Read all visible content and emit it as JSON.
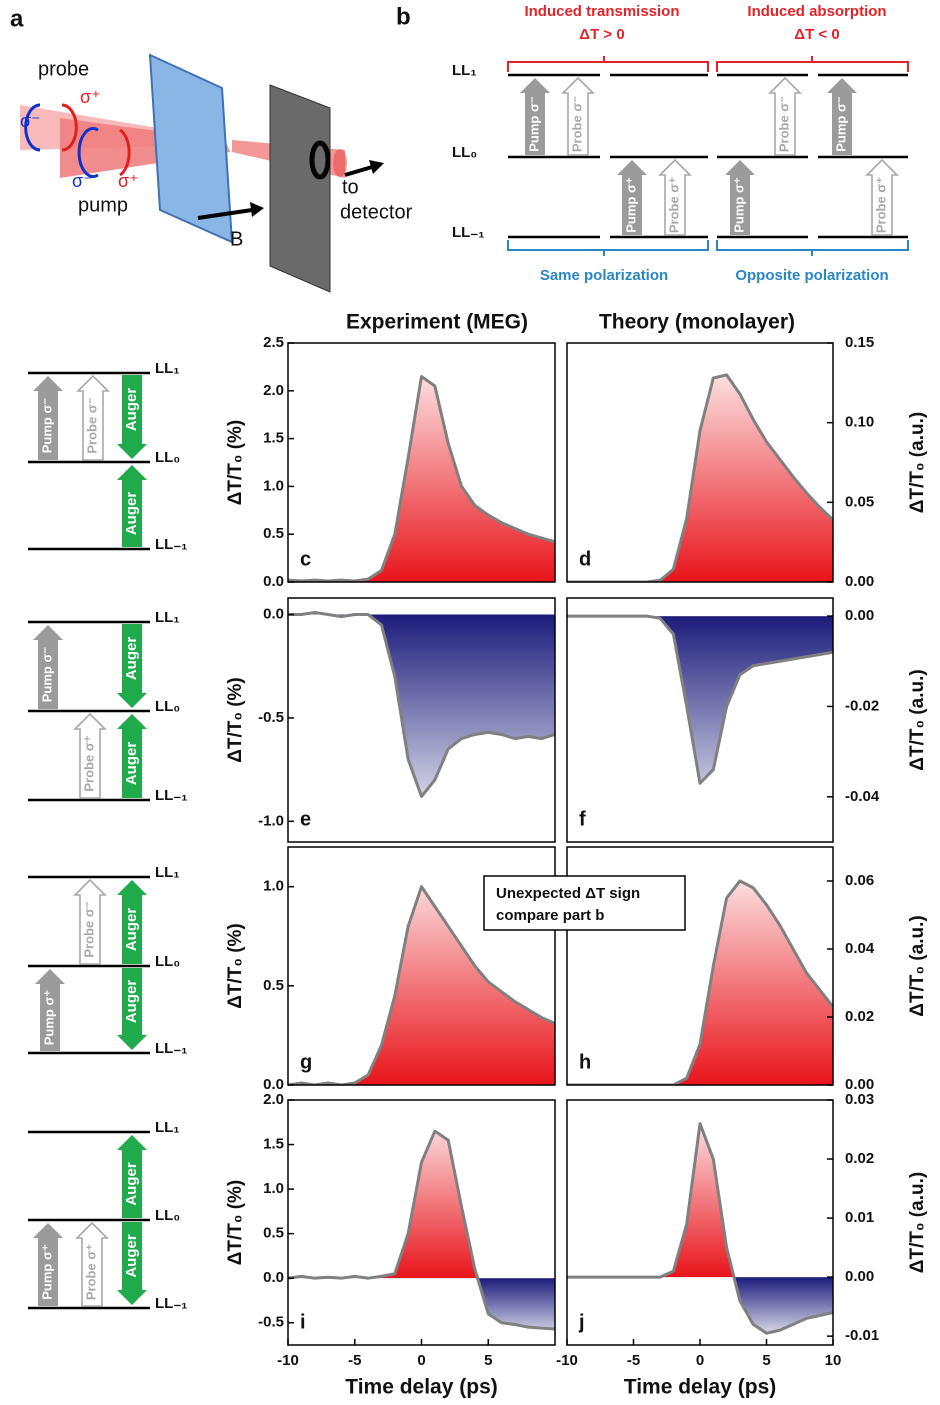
{
  "panel_a": {
    "label": "a",
    "probe": "probe",
    "pump": "pump",
    "sigma_minus": "σ⁻",
    "sigma_plus": "σ⁺",
    "field": "B",
    "to": "to",
    "detector": "detector"
  },
  "panel_b": {
    "label": "b",
    "headers": [
      "Induced transmission",
      "Induced absorption"
    ],
    "conditions": [
      "ΔT > 0",
      "ΔT < 0"
    ],
    "footers": [
      "Same polarization",
      "Opposite polarization"
    ]
  },
  "levels": [
    "LL₁",
    "LL₀",
    "LL₋₁"
  ],
  "arrow_labels": {
    "pump_minus": "Pump σ⁻",
    "pump_plus": "Pump σ⁺",
    "probe_minus": "Probe σ⁻",
    "probe_plus": "Probe σ⁺",
    "auger": "Auger"
  },
  "column_titles": [
    "Experiment (MEG)",
    "Theory (monolayer)"
  ],
  "annotation": [
    "Unexpected ΔT sign",
    "compare part b"
  ],
  "chart_data": [
    {
      "type": "area",
      "panel": "c",
      "x": [
        -10,
        -9,
        -8,
        -7,
        -6,
        -5,
        -4,
        -3,
        -2,
        -1,
        0,
        1,
        2,
        3,
        4,
        5,
        6,
        7,
        8,
        9,
        10
      ],
      "values": [
        0.02,
        0.01,
        0.02,
        0.01,
        0.02,
        0.01,
        0.03,
        0.12,
        0.5,
        1.3,
        2.15,
        2.05,
        1.45,
        1.0,
        0.8,
        0.7,
        0.62,
        0.56,
        0.5,
        0.46,
        0.42
      ],
      "color": "#808080",
      "positive_color": "#e8141b",
      "negative_color": "#1c1c7c",
      "xlim": [
        -10,
        10
      ],
      "ylim": [
        0,
        2.5
      ],
      "yticks": [
        {
          "value": 0,
          "label": "0.0"
        },
        0.5,
        {
          "value": 1,
          "label": "1.0"
        },
        1.5,
        {
          "value": 2,
          "label": "2.0"
        },
        2.5
      ],
      "ylabel": "ΔT/T₀ (%)"
    },
    {
      "type": "area",
      "panel": "d",
      "x": [
        -10,
        -9,
        -8,
        -7,
        -6,
        -5,
        -4,
        -3,
        -2,
        -1,
        0,
        1,
        2,
        3,
        4,
        5,
        6,
        7,
        8,
        9,
        10
      ],
      "values": [
        0,
        0,
        0,
        0,
        0,
        0,
        0,
        0.001,
        0.008,
        0.04,
        0.095,
        0.128,
        0.13,
        0.118,
        0.102,
        0.088,
        0.077,
        0.066,
        0.056,
        0.047,
        0.039
      ],
      "color": "#808080",
      "positive_color": "#e8141b",
      "negative_color": "#1c1c7c",
      "xlim": [
        -10,
        10
      ],
      "ylim": [
        0,
        0.15
      ],
      "yticks": [
        {
          "value": 0,
          "label": "0.00"
        },
        0.05,
        {
          "value": 0.1,
          "label": "0.10"
        },
        0.15
      ],
      "ylabel": "ΔT/T₀ (a.u.)"
    },
    {
      "type": "area",
      "panel": "e",
      "x": [
        -10,
        -9,
        -8,
        -7,
        -6,
        -5,
        -4,
        -3,
        -2,
        -1,
        0,
        1,
        2,
        3,
        4,
        5,
        6,
        7,
        8,
        9,
        10
      ],
      "values": [
        0,
        0,
        0.01,
        0,
        -0.01,
        0,
        0,
        -0.05,
        -0.3,
        -0.7,
        -0.88,
        -0.8,
        -0.65,
        -0.6,
        -0.58,
        -0.57,
        -0.58,
        -0.6,
        -0.59,
        -0.6,
        -0.58
      ],
      "color": "#808080",
      "positive_color": "#e8141b",
      "negative_color": "#1c1c7c",
      "xlim": [
        -10,
        10
      ],
      "ylim": [
        -1.1,
        0.08
      ],
      "yticks": [
        {
          "value": 0,
          "label": "0.0"
        },
        -0.5,
        {
          "value": -1,
          "label": "-1.0"
        }
      ],
      "ylabel": "ΔT/T₀ (%)"
    },
    {
      "type": "area",
      "panel": "f",
      "x": [
        -10,
        -9,
        -8,
        -7,
        -6,
        -5,
        -4,
        -3,
        -2,
        -1,
        0,
        1,
        2,
        3,
        4,
        5,
        6,
        7,
        8,
        9,
        10
      ],
      "values": [
        0,
        0,
        0,
        0,
        0,
        0,
        0,
        -0.0005,
        -0.004,
        -0.02,
        -0.037,
        -0.034,
        -0.02,
        -0.013,
        -0.011,
        -0.0105,
        -0.01,
        -0.0095,
        -0.009,
        -0.0085,
        -0.008
      ],
      "color": "#808080",
      "positive_color": "#e8141b",
      "negative_color": "#1c1c7c",
      "xlim": [
        -10,
        10
      ],
      "ylim": [
        -0.05,
        0.004
      ],
      "yticks": [
        {
          "value": 0,
          "label": "0.00"
        },
        -0.02,
        -0.04
      ],
      "ylabel": "ΔT/T₀ (a.u.)"
    },
    {
      "type": "area",
      "panel": "g",
      "x": [
        -10,
        -9,
        -8,
        -7,
        -6,
        -5,
        -4,
        -3,
        -2,
        -1,
        0,
        1,
        2,
        3,
        4,
        5,
        6,
        7,
        8,
        9,
        10
      ],
      "values": [
        0,
        0.01,
        0,
        0.01,
        0,
        0.01,
        0.05,
        0.2,
        0.45,
        0.8,
        1.0,
        0.9,
        0.8,
        0.7,
        0.6,
        0.52,
        0.47,
        0.42,
        0.38,
        0.34,
        0.31
      ],
      "color": "#808080",
      "positive_color": "#e8141b",
      "negative_color": "#1c1c7c",
      "xlim": [
        -10,
        10
      ],
      "ylim": [
        0,
        1.2
      ],
      "yticks": [
        {
          "value": 0,
          "label": "0.0"
        },
        0.5,
        {
          "value": 1,
          "label": "1.0"
        }
      ],
      "ylabel": "ΔT/T₀ (%)"
    },
    {
      "type": "area",
      "panel": "h",
      "x": [
        -10,
        -9,
        -8,
        -7,
        -6,
        -5,
        -4,
        -3,
        -2,
        -1,
        0,
        1,
        2,
        3,
        4,
        5,
        6,
        7,
        8,
        9,
        10
      ],
      "values": [
        0,
        0,
        0,
        0,
        0,
        0,
        0,
        0,
        0,
        0.002,
        0.012,
        0.035,
        0.055,
        0.06,
        0.058,
        0.053,
        0.047,
        0.04,
        0.033,
        0.028,
        0.023
      ],
      "color": "#808080",
      "positive_color": "#e8141b",
      "negative_color": "#1c1c7c",
      "xlim": [
        -10,
        10
      ],
      "ylim": [
        0,
        0.07
      ],
      "yticks": [
        {
          "value": 0,
          "label": "0.00"
        },
        0.02,
        0.04,
        0.06
      ],
      "ylabel": "ΔT/T₀ (a.u.)"
    },
    {
      "type": "area",
      "panel": "i",
      "x": [
        -10,
        -9,
        -8,
        -7,
        -6,
        -5,
        -4,
        -3,
        -2,
        -1,
        0,
        1,
        2,
        3,
        4,
        5,
        6,
        7,
        8,
        9,
        10
      ],
      "values": [
        0,
        0.02,
        0,
        0.01,
        0,
        0.02,
        0,
        0.02,
        0.05,
        0.5,
        1.3,
        1.65,
        1.55,
        0.8,
        0.1,
        -0.4,
        -0.5,
        -0.52,
        -0.55,
        -0.56,
        -0.57
      ],
      "color": "#808080",
      "positive_color": "#e8141b",
      "negative_color": "#1c1c7c",
      "xlim": [
        -10,
        10
      ],
      "ylim": [
        -0.75,
        2
      ],
      "yticks": [
        -0.5,
        {
          "value": 0,
          "label": "0.0"
        },
        0.5,
        {
          "value": 1,
          "label": "1.0"
        },
        1.5,
        {
          "value": 2,
          "label": "2.0"
        }
      ],
      "xticks": [
        -10,
        -5,
        0,
        5
      ],
      "ylabel": "ΔT/T₀ (%)",
      "xlabel": "Time delay (ps)"
    },
    {
      "type": "area",
      "panel": "j",
      "x": [
        -10,
        -9,
        -8,
        -7,
        -6,
        -5,
        -4,
        -3,
        -2,
        -1,
        0,
        1,
        2,
        3,
        4,
        5,
        6,
        7,
        8,
        9,
        10
      ],
      "values": [
        0,
        0,
        0,
        0,
        0,
        0,
        0,
        0,
        0.001,
        0.009,
        0.026,
        0.02,
        0.005,
        -0.004,
        -0.008,
        -0.0095,
        -0.009,
        -0.008,
        -0.007,
        -0.0065,
        -0.006
      ],
      "color": "#808080",
      "positive_color": "#e8141b",
      "negative_color": "#1c1c7c",
      "xlim": [
        -10,
        10
      ],
      "ylim": [
        -0.0115,
        0.03
      ],
      "yticks": [
        -0.01,
        {
          "value": 0,
          "label": "0.00"
        },
        0.01,
        0.02,
        0.03
      ],
      "xticks": [
        -10,
        -5,
        0,
        5,
        10
      ],
      "ylabel": "ΔT/T₀ (a.u.)",
      "xlabel": "Time delay (ps)"
    }
  ]
}
